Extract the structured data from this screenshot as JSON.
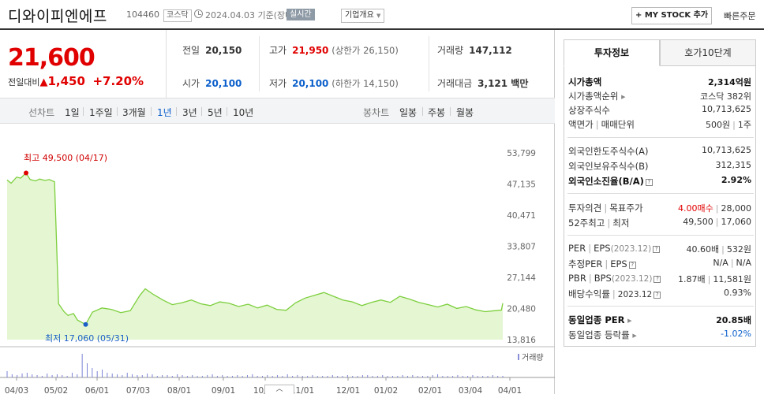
{
  "header": {
    "name": "디와이피엔에프",
    "code": "104460",
    "market": "코스닥",
    "date": "2024.04.03 기준(장마감)",
    "realtime": "실시간",
    "overview": "기업개요",
    "mystock": "+ MY STOCK 추가",
    "buy_order": "빠른주문"
  },
  "price": {
    "current": "21,600",
    "change_label": "전일대비",
    "change_arrow": "▲",
    "change_amount": "1,450",
    "change_pct": "+7.20%"
  },
  "quotes": {
    "prev_close": {
      "label": "전일",
      "value": "20,150"
    },
    "high": {
      "label": "고가",
      "value": "21,950",
      "sub": "(상한가 26,150)"
    },
    "volume": {
      "label": "거래량",
      "value": "147,112"
    },
    "open": {
      "label": "시가",
      "value": "20,100"
    },
    "low": {
      "label": "저가",
      "value": "20,100",
      "sub": "(하한가 14,150)"
    },
    "trade_value": {
      "label": "거래대금",
      "value": "3,121 백만"
    }
  },
  "periods": {
    "line_label": "선차트",
    "line_items": [
      "1일",
      "1주일",
      "3개월",
      "1년",
      "3년",
      "5년",
      "10년"
    ],
    "active": "1년",
    "candle_label": "봉차트",
    "candle_items": [
      "일봉",
      "주봉",
      "월봉"
    ]
  },
  "chart_data": {
    "type": "area",
    "y_ticks": [
      "53,799",
      "47,135",
      "40,471",
      "33,807",
      "27,144",
      "20,480",
      "13,816"
    ],
    "ylim": [
      13816,
      53799
    ],
    "x_ticks": [
      "04/03",
      "05/02",
      "06/01",
      "07/03",
      "08/01",
      "09/01",
      "10/04",
      "11/01",
      "12/01",
      "01/02",
      "02/01",
      "03/04",
      "04/01"
    ],
    "high_annotation": "최고 49,500 (04/17)",
    "low_annotation": "최저 17,060 (05/31)",
    "volume_label": "거래량",
    "line_color": "#7dcf3e",
    "fill_color": "#e4f7d2",
    "price_series": [
      [
        "2023-04-03",
        48000
      ],
      [
        "2023-04-06",
        47300
      ],
      [
        "2023-04-10",
        48600
      ],
      [
        "2023-04-13",
        48400
      ],
      [
        "2023-04-17",
        49500
      ],
      [
        "2023-04-20",
        48100
      ],
      [
        "2023-04-24",
        47800
      ],
      [
        "2023-04-27",
        48200
      ],
      [
        "2023-05-01",
        47900
      ],
      [
        "2023-05-04",
        48100
      ],
      [
        "2023-05-08",
        47600
      ],
      [
        "2023-05-11",
        21500
      ],
      [
        "2023-05-15",
        19800
      ],
      [
        "2023-05-18",
        19000
      ],
      [
        "2023-05-22",
        19400
      ],
      [
        "2023-05-25",
        18000
      ],
      [
        "2023-05-31",
        17060
      ],
      [
        "2023-06-05",
        19700
      ],
      [
        "2023-06-12",
        20600
      ],
      [
        "2023-06-19",
        20300
      ],
      [
        "2023-06-26",
        19600
      ],
      [
        "2023-07-03",
        20000
      ],
      [
        "2023-07-10",
        23300
      ],
      [
        "2023-07-14",
        24700
      ],
      [
        "2023-07-20",
        23500
      ],
      [
        "2023-07-27",
        22300
      ],
      [
        "2023-08-03",
        21300
      ],
      [
        "2023-08-10",
        21700
      ],
      [
        "2023-08-17",
        22300
      ],
      [
        "2023-08-24",
        21500
      ],
      [
        "2023-08-31",
        21100
      ],
      [
        "2023-09-07",
        21900
      ],
      [
        "2023-09-14",
        21600
      ],
      [
        "2023-09-21",
        20900
      ],
      [
        "2023-09-28",
        21400
      ],
      [
        "2023-10-05",
        20600
      ],
      [
        "2023-10-12",
        21200
      ],
      [
        "2023-10-19",
        20300
      ],
      [
        "2023-10-26",
        20100
      ],
      [
        "2023-11-02",
        21700
      ],
      [
        "2023-11-09",
        22700
      ],
      [
        "2023-11-16",
        23300
      ],
      [
        "2023-11-23",
        23900
      ],
      [
        "2023-11-30",
        23100
      ],
      [
        "2023-12-07",
        22300
      ],
      [
        "2023-12-14",
        21900
      ],
      [
        "2023-12-21",
        21100
      ],
      [
        "2023-12-28",
        21800
      ],
      [
        "2024-01-04",
        22300
      ],
      [
        "2024-01-11",
        21800
      ],
      [
        "2024-01-18",
        23100
      ],
      [
        "2024-01-25",
        22500
      ],
      [
        "2024-02-01",
        21800
      ],
      [
        "2024-02-08",
        21300
      ],
      [
        "2024-02-15",
        20800
      ],
      [
        "2024-02-22",
        21400
      ],
      [
        "2024-02-29",
        20500
      ],
      [
        "2024-03-07",
        20900
      ],
      [
        "2024-03-14",
        20200
      ],
      [
        "2024-03-21",
        19800
      ],
      [
        "2024-03-28",
        20000
      ],
      [
        "2024-04-02",
        20150
      ],
      [
        "2024-04-03",
        21600
      ]
    ]
  },
  "side": {
    "tabs": [
      "투자정보",
      "호가10단계"
    ],
    "market_cap": {
      "label": "시가총액",
      "value": "2,314억원"
    },
    "market_cap_rank": {
      "label": "시가총액순위",
      "value": "코스닥 382위"
    },
    "shares": {
      "label": "상장주식수",
      "value": "10,713,625"
    },
    "par": {
      "label": "액면가",
      "label2": "매매단위",
      "value": "500원",
      "value2": "1주"
    },
    "foreign_limit": {
      "label": "외국인한도주식수(A)",
      "value": "10,713,625"
    },
    "foreign_hold": {
      "label": "외국인보유주식수(B)",
      "value": "312,315"
    },
    "foreign_ratio": {
      "label": "외국인소진율(B/A)",
      "value": "2.92%"
    },
    "opinion": {
      "label": "투자의견",
      "label2": "목표주가",
      "value": "4.00매수",
      "value2": "28,000"
    },
    "w52": {
      "label": "52주최고",
      "label2": "최저",
      "value": "49,500",
      "value2": "17,060"
    },
    "per": {
      "label": "PER",
      "label2": "EPS",
      "label3": "(2023.12)",
      "value": "40.60배",
      "value2": "532원"
    },
    "est_per": {
      "label": "추정PER",
      "label2": "EPS",
      "value": "N/A",
      "value2": "N/A"
    },
    "pbr": {
      "label": "PBR",
      "label2": "BPS",
      "label3": "(2023.12)",
      "value": "1.87배",
      "value2": "11,581원"
    },
    "dividend": {
      "label": "배당수익률",
      "label2": "2023.12",
      "value": "0.93%"
    },
    "industry_per": {
      "label": "동일업종 PER",
      "value": "20.85배"
    },
    "industry_rate": {
      "label": "동일업종 등락률",
      "value": "-1.02%"
    }
  }
}
